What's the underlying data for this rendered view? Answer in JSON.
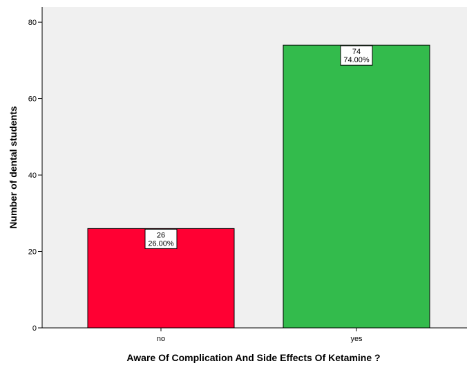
{
  "chart_data": {
    "type": "bar",
    "title": "",
    "xlabel": "Aware Of Complication And Side Effects Of Ketamine ?",
    "ylabel": "Number of dental students",
    "categories": [
      "no",
      "yes"
    ],
    "values": [
      26,
      74
    ],
    "data_labels": [
      {
        "count": "26",
        "percent": "26.00%"
      },
      {
        "count": "74",
        "percent": "74.00%"
      }
    ],
    "ylim": [
      0,
      84
    ],
    "yticks": [
      0,
      20,
      40,
      60,
      80
    ],
    "grid": false,
    "legend": "none",
    "colors": {
      "bars": [
        "#ff0033",
        "#33bb4c"
      ],
      "plot_background": "#f0f0f0",
      "bar_outline": "#000000",
      "axis": "#000000"
    }
  }
}
